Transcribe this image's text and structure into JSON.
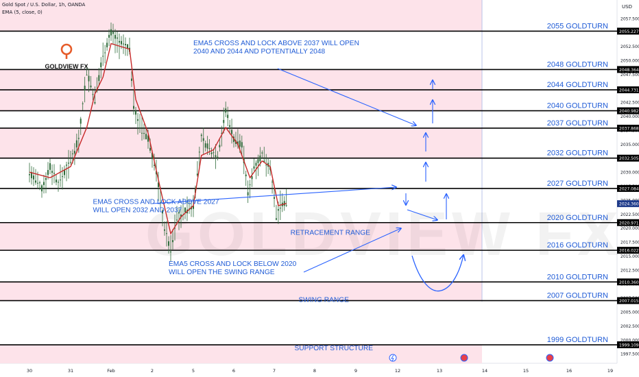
{
  "header": {
    "symbol": "Gold Spot / U.S. Dollar, 1h, OANDA",
    "indicator": "EMA (5, close, 0)",
    "currency": "USD"
  },
  "brand": {
    "name": "GOLDVIEW FX",
    "watermark": "GOLDVIEW FX"
  },
  "colors": {
    "pink_band": "#fde3ea",
    "level_line": "#000000",
    "label_blue": "#1f5bd6",
    "arrow_blue": "#2962ff",
    "ema": "#c62828",
    "candle": "#2e6b3a",
    "price_tag": "#000000",
    "current_tag": "#1e3a8a"
  },
  "chart_data": {
    "type": "line",
    "title": "Gold Spot / U.S. Dollar, 1h, OANDA",
    "ylabel": "USD",
    "ylim": [
      1995.8,
      2060.8
    ],
    "y_ticks": [
      1997.5,
      2000.0,
      2002.5,
      2005.0,
      2007.5,
      2010.0,
      2012.5,
      2015.0,
      2017.5,
      2020.0,
      2022.5,
      2025.0,
      2027.5,
      2030.0,
      2032.5,
      2035.0,
      2037.5,
      2040.0,
      2042.5,
      2045.0,
      2047.5,
      2050.0,
      2052.5,
      2055.0,
      2057.5
    ],
    "x_tick_labels": [
      "30",
      "31",
      "Feb",
      "2",
      "5",
      "6",
      "7",
      "8",
      "9",
      "12",
      "13",
      "14",
      "15",
      "16",
      "19"
    ],
    "levels": [
      {
        "price": 2055.227,
        "label": "2055 GOLDTURN"
      },
      {
        "price": 2048.364,
        "label": "2048 GOLDTURN"
      },
      {
        "price": 2044.731,
        "label": "2044 GOLDTURN"
      },
      {
        "price": 2040.982,
        "label": "2040 GOLDTURN"
      },
      {
        "price": 2037.868,
        "label": "2037 GOLDTURN"
      },
      {
        "price": 2032.505,
        "label": "2032 GOLDTURN"
      },
      {
        "price": 2027.084,
        "label": "2027 GOLDTURN"
      },
      {
        "price": 2020.971,
        "label": "2020 GOLDTURN"
      },
      {
        "price": 2016.022,
        "label": "2016 GOLDTURN"
      },
      {
        "price": 2010.36,
        "label": "2010 GOLDTURN"
      },
      {
        "price": 2007.015,
        "label": "2007 GOLDTURN"
      },
      {
        "price": 1999.109,
        "label": "1999 GOLDTURN"
      }
    ],
    "level_tags": [
      "2055.227",
      "2048.364",
      "2044.731",
      "2040.982",
      "2037.868",
      "2032.505",
      "2027.084",
      "2020.971",
      "2016.022",
      "2010.360",
      "2007.015",
      "1999.109"
    ],
    "current_price": 2024.36,
    "current_price_tag": "2024.360",
    "pink_zones": [
      [
        2055.227,
        2060.8
      ],
      [
        2040.982,
        2048.364
      ],
      [
        2032.505,
        2037.868
      ],
      [
        2016.022,
        2020.971
      ],
      [
        2007.015,
        2010.36
      ],
      [
        1995.8,
        1999.109
      ]
    ],
    "price_path": [
      {
        "x": 0.0,
        "y": 2030
      },
      {
        "x": 0.3,
        "y": 2027
      },
      {
        "x": 0.5,
        "y": 2031
      },
      {
        "x": 0.7,
        "y": 2028
      },
      {
        "x": 1.0,
        "y": 2032
      },
      {
        "x": 1.2,
        "y": 2036
      },
      {
        "x": 1.4,
        "y": 2048
      },
      {
        "x": 1.6,
        "y": 2043
      },
      {
        "x": 1.8,
        "y": 2051
      },
      {
        "x": 2.0,
        "y": 2055
      },
      {
        "x": 2.2,
        "y": 2053
      },
      {
        "x": 2.45,
        "y": 2052
      },
      {
        "x": 2.55,
        "y": 2042
      },
      {
        "x": 2.7,
        "y": 2038
      },
      {
        "x": 2.9,
        "y": 2036
      },
      {
        "x": 3.1,
        "y": 2030
      },
      {
        "x": 3.3,
        "y": 2020
      },
      {
        "x": 3.45,
        "y": 2016
      },
      {
        "x": 3.6,
        "y": 2022
      },
      {
        "x": 3.8,
        "y": 2023
      },
      {
        "x": 4.0,
        "y": 2024
      },
      {
        "x": 4.2,
        "y": 2036
      },
      {
        "x": 4.4,
        "y": 2034
      },
      {
        "x": 4.6,
        "y": 2033
      },
      {
        "x": 4.8,
        "y": 2041
      },
      {
        "x": 5.0,
        "y": 2036
      },
      {
        "x": 5.2,
        "y": 2035
      },
      {
        "x": 5.35,
        "y": 2026
      },
      {
        "x": 5.5,
        "y": 2031
      },
      {
        "x": 5.7,
        "y": 2033
      },
      {
        "x": 5.9,
        "y": 2031
      },
      {
        "x": 6.05,
        "y": 2022
      },
      {
        "x": 6.15,
        "y": 2024
      },
      {
        "x": 6.3,
        "y": 2024.36
      }
    ],
    "ema_path": [
      {
        "x": 0.0,
        "y": 2030
      },
      {
        "x": 0.5,
        "y": 2029
      },
      {
        "x": 1.0,
        "y": 2031
      },
      {
        "x": 1.4,
        "y": 2038
      },
      {
        "x": 1.6,
        "y": 2044
      },
      {
        "x": 1.8,
        "y": 2047
      },
      {
        "x": 2.0,
        "y": 2053
      },
      {
        "x": 2.45,
        "y": 2052
      },
      {
        "x": 2.6,
        "y": 2043
      },
      {
        "x": 2.9,
        "y": 2037
      },
      {
        "x": 3.2,
        "y": 2027
      },
      {
        "x": 3.45,
        "y": 2019
      },
      {
        "x": 3.7,
        "y": 2022
      },
      {
        "x": 4.0,
        "y": 2024
      },
      {
        "x": 4.2,
        "y": 2033
      },
      {
        "x": 4.5,
        "y": 2034
      },
      {
        "x": 4.8,
        "y": 2038
      },
      {
        "x": 5.1,
        "y": 2035
      },
      {
        "x": 5.4,
        "y": 2029
      },
      {
        "x": 5.7,
        "y": 2032
      },
      {
        "x": 5.9,
        "y": 2031
      },
      {
        "x": 6.1,
        "y": 2024
      },
      {
        "x": 6.3,
        "y": 2024.4
      }
    ],
    "annotations": [
      {
        "text": [
          "EMA5 CROSS AND LOCK  ABOVE 2037 WILL OPEN",
          "2040 AND 2044 AND POTENTIALLY 2048"
        ],
        "x": 4.0,
        "y": 2052.7
      },
      {
        "text": [
          "EMA5 CROSS AND LOCK ABOVE 2027",
          "WILL OPEN 2032 AND 2037"
        ],
        "x": 1.55,
        "y": 2024.3
      },
      {
        "text": [
          "EMA5 CROSS AND LOCK BELOW 2020",
          "WILL OPEN THE SWING RANGE"
        ],
        "x": 3.4,
        "y": 2013.2
      },
      {
        "text": [
          "RETRACEMENT RANGE"
        ],
        "x": 6.4,
        "y": 2018.8
      },
      {
        "text": [
          "SWING RANGE"
        ],
        "x": 6.6,
        "y": 2006.8
      },
      {
        "text": [
          "SUPPORT STRUCTURE"
        ],
        "x": 6.5,
        "y": 1998.1
      }
    ]
  }
}
